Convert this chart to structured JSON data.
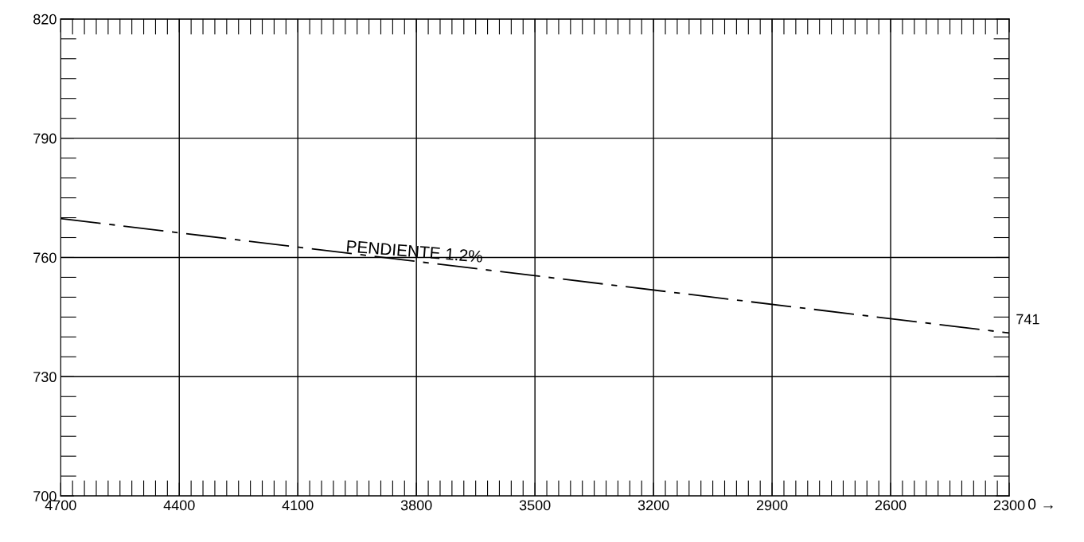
{
  "chart_data": {
    "type": "line",
    "x": [
      4700,
      2300
    ],
    "series": [
      {
        "color": "#000000",
        "values": [
          769.8,
          741
        ]
      }
    ],
    "xlim": [
      4700,
      2300
    ],
    "xticks": [
      4700,
      4400,
      4100,
      3800,
      3500,
      3200,
      2900,
      2600,
      2300
    ],
    "ylim": [
      700,
      820
    ],
    "yticks": [
      700,
      730,
      760,
      790,
      820
    ],
    "grid": true,
    "line_style": "dashed",
    "marker": "none",
    "annotations": [
      "PENDIENTE 1.2%",
      {
        "text": "741",
        "x": 2300,
        "y": 741
      },
      "0 →"
    ]
  }
}
